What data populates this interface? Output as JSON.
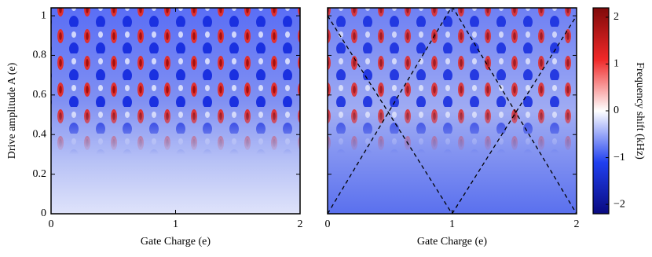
{
  "chart_data": [
    {
      "type": "heatmap",
      "xlabel": "Gate Charge (e)",
      "ylabel": "Drive amplitude A (e)",
      "xlim": [
        0,
        2
      ],
      "xticks": [
        0,
        1,
        2
      ],
      "ylim": [
        0,
        1.04
      ],
      "yticks": [
        0,
        0.2,
        0.4,
        0.6,
        0.8,
        1
      ],
      "ytick_labels": true
    },
    {
      "type": "heatmap",
      "xlabel": "Gate Charge (e)",
      "xlim": [
        0,
        2
      ],
      "xticks": [
        0,
        1,
        2
      ],
      "ylim": [
        0,
        1.04
      ],
      "yticks": [
        0,
        0.2,
        0.4,
        0.6,
        0.8,
        1
      ],
      "ytick_labels": false
    }
  ],
  "colorbar": {
    "label": "Frequency shift (kHz)",
    "lim": [
      -2.2,
      2.2
    ],
    "ticks": [
      {
        "value": -2,
        "label": "−2"
      },
      {
        "value": -1,
        "label": "−1"
      },
      0,
      1,
      2
    ],
    "colormap": [
      "#0a0a80",
      "#2040f0",
      "#ffffff",
      "#f02828",
      "#800a0a"
    ]
  }
}
